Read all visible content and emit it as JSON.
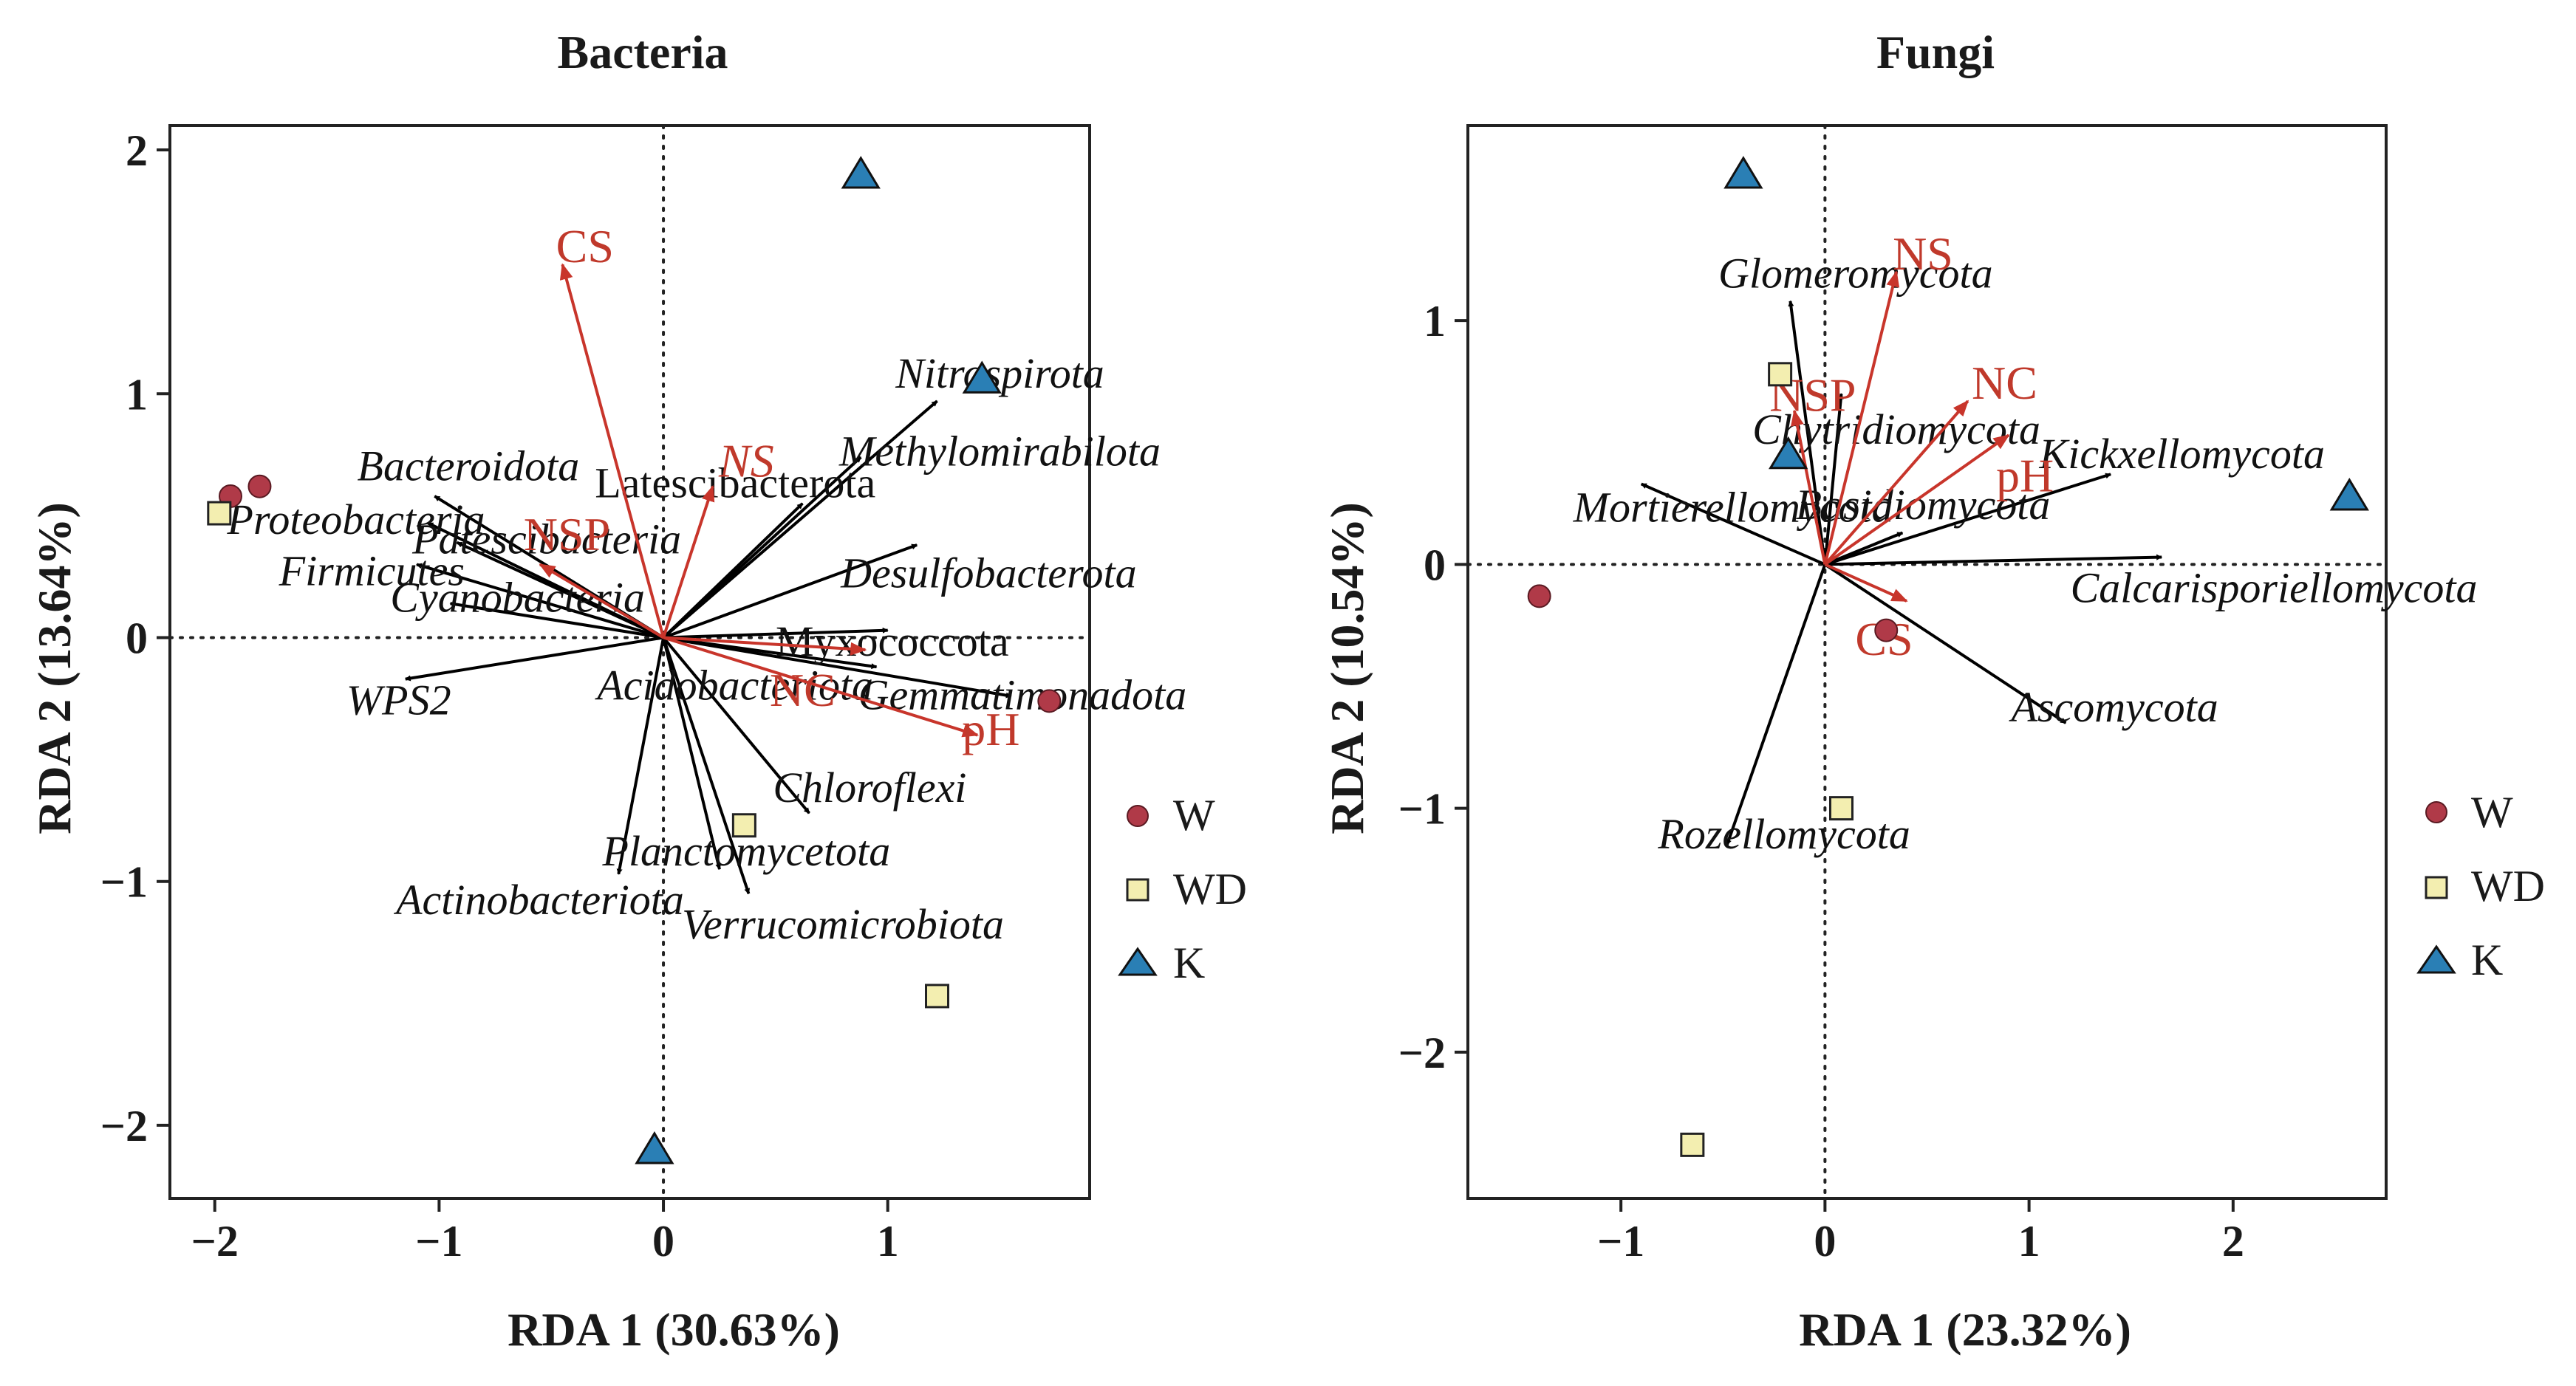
{
  "colors": {
    "taxa_arrow": "#000000",
    "env_arrow": "#c8352b",
    "W": "#b03a48",
    "WD": "#f3eeb0",
    "K": "#2a7fb5"
  },
  "legend": {
    "items": [
      {
        "key": "W",
        "label": "W",
        "shape": "circle"
      },
      {
        "key": "WD",
        "label": "WD",
        "shape": "square"
      },
      {
        "key": "K",
        "label": "K",
        "shape": "triangle"
      }
    ]
  },
  "chart_data": [
    {
      "type": "scatter",
      "title": "Bacteria",
      "xlabel": "RDA 1 (30.63%)",
      "ylabel": "RDA 2 (13.64%)",
      "xlim": [
        -2.2,
        1.9
      ],
      "ylim": [
        -2.3,
        2.1
      ],
      "xticks": [
        -2,
        -1,
        0,
        1
      ],
      "yticks": [
        -2,
        -1,
        0,
        1,
        2
      ],
      "tick_labels_x": [
        "−2",
        "−1",
        "0",
        "1"
      ],
      "tick_labels_y": [
        "−2",
        "−1",
        "0",
        "1",
        "2"
      ],
      "taxa": [
        {
          "name": "Nitrospirota",
          "x": 1.22,
          "y": 0.97,
          "lx": 1.5,
          "ly": 1.08,
          "anchor": "middle",
          "italic": true
        },
        {
          "name": "Methylomirabilota",
          "x": 0.88,
          "y": 0.74,
          "lx": 1.5,
          "ly": 0.76,
          "anchor": "middle",
          "italic": true
        },
        {
          "name": "Latescibacterota",
          "x": 0.62,
          "y": 0.55,
          "lx": 0.32,
          "ly": 0.63,
          "anchor": "middle",
          "italic": false
        },
        {
          "name": "Desulfobacterota",
          "x": 1.13,
          "y": 0.38,
          "lx": 1.45,
          "ly": 0.26,
          "anchor": "middle",
          "italic": true
        },
        {
          "name": "Myxococcota",
          "x": 1.0,
          "y": 0.03,
          "lx": 1.02,
          "ly": -0.02,
          "anchor": "middle",
          "italic": false
        },
        {
          "name": "Gemmatimonadota",
          "x": 1.55,
          "y": -0.24,
          "lx": 1.6,
          "ly": -0.24,
          "anchor": "middle",
          "italic": true
        },
        {
          "name": "Acidobacteriota",
          "x": 0.95,
          "y": -0.12,
          "lx": 0.32,
          "ly": -0.2,
          "anchor": "middle",
          "italic": true
        },
        {
          "name": "Chloroflexi",
          "x": 0.65,
          "y": -0.72,
          "lx": 0.92,
          "ly": -0.62,
          "anchor": "middle",
          "italic": true
        },
        {
          "name": "Planctomycetota",
          "x": 0.25,
          "y": -0.95,
          "lx": 0.37,
          "ly": -0.88,
          "anchor": "middle",
          "italic": true
        },
        {
          "name": "Verrucomicrobiota",
          "x": 0.38,
          "y": -1.05,
          "lx": 0.8,
          "ly": -1.18,
          "anchor": "middle",
          "italic": true
        },
        {
          "name": "Actinobacteriota",
          "x": -0.2,
          "y": -0.97,
          "lx": -0.55,
          "ly": -1.08,
          "anchor": "middle",
          "italic": true
        },
        {
          "name": "WPS2",
          "x": -1.15,
          "y": -0.17,
          "lx": -1.18,
          "ly": -0.26,
          "anchor": "middle",
          "italic": true
        },
        {
          "name": "Bacteroidota",
          "x": -1.02,
          "y": 0.58,
          "lx": -0.87,
          "ly": 0.7,
          "anchor": "middle",
          "italic": true
        },
        {
          "name": "Proteobacteria",
          "x": -1.05,
          "y": 0.47,
          "lx": -1.37,
          "ly": 0.48,
          "anchor": "middle",
          "italic": true
        },
        {
          "name": "Patescibacteria",
          "x": -0.92,
          "y": 0.39,
          "lx": -0.52,
          "ly": 0.4,
          "anchor": "middle",
          "italic": true
        },
        {
          "name": "Firmicutes",
          "x": -1.1,
          "y": 0.3,
          "lx": -1.3,
          "ly": 0.27,
          "anchor": "middle",
          "italic": true
        },
        {
          "name": "Cyanobacteria",
          "x": -0.95,
          "y": 0.14,
          "lx": -0.65,
          "ly": 0.16,
          "anchor": "middle",
          "italic": true
        }
      ],
      "env": [
        {
          "name": "CS",
          "x": -0.45,
          "y": 1.53,
          "lx": -0.35,
          "ly": 1.6,
          "anchor": "middle",
          "italic": false
        },
        {
          "name": "NS",
          "x": 0.22,
          "y": 0.62,
          "lx": 0.37,
          "ly": 0.72,
          "anchor": "middle",
          "italic": true
        },
        {
          "name": "NSP",
          "x": -0.55,
          "y": 0.3,
          "lx": -0.43,
          "ly": 0.42,
          "anchor": "middle",
          "italic": false
        },
        {
          "name": "NC",
          "x": 0.9,
          "y": -0.05,
          "lx": 0.62,
          "ly": -0.22,
          "anchor": "middle",
          "italic": false
        },
        {
          "name": "pH",
          "x": 1.4,
          "y": -0.4,
          "lx": 1.46,
          "ly": -0.38,
          "anchor": "middle",
          "italic": false
        }
      ],
      "samples": [
        {
          "group": "W",
          "x": -1.93,
          "y": 0.58
        },
        {
          "group": "W",
          "x": -1.8,
          "y": 0.62
        },
        {
          "group": "W",
          "x": 1.72,
          "y": -0.26
        },
        {
          "group": "WD",
          "x": -1.98,
          "y": 0.51
        },
        {
          "group": "WD",
          "x": 0.36,
          "y": -0.77
        },
        {
          "group": "WD",
          "x": 1.22,
          "y": -1.47
        },
        {
          "group": "K",
          "x": 0.88,
          "y": 1.9
        },
        {
          "group": "K",
          "x": 1.42,
          "y": 1.06
        },
        {
          "group": "K",
          "x": -0.04,
          "y": -2.1
        }
      ]
    },
    {
      "type": "scatter",
      "title": "Fungi",
      "xlabel": "RDA 1 (23.32%)",
      "ylabel": "RDA 2 (10.54%)",
      "xlim": [
        -1.75,
        2.75
      ],
      "ylim": [
        -2.6,
        1.8
      ],
      "xticks": [
        -1,
        0,
        1,
        2
      ],
      "yticks": [
        -2,
        -1,
        0,
        1
      ],
      "tick_labels_x": [
        "−1",
        "0",
        "1",
        "2"
      ],
      "tick_labels_y": [
        "−2",
        "−1",
        "0",
        "1"
      ],
      "taxa": [
        {
          "name": "Glomeromycota",
          "x": -0.17,
          "y": 1.08,
          "lx": 0.15,
          "ly": 1.19,
          "anchor": "middle",
          "italic": true
        },
        {
          "name": "Chytridiomycota",
          "x": 0.08,
          "y": 0.7,
          "lx": 0.35,
          "ly": 0.55,
          "anchor": "middle",
          "italic": true
        },
        {
          "name": "Kickxellomycota",
          "x": 1.4,
          "y": 0.37,
          "lx": 1.75,
          "ly": 0.45,
          "anchor": "middle",
          "italic": true
        },
        {
          "name": "Mortierellomycota",
          "x": -0.9,
          "y": 0.33,
          "lx": -0.45,
          "ly": 0.23,
          "anchor": "middle",
          "italic": true
        },
        {
          "name": "Basidiomycota",
          "x": 0.38,
          "y": 0.13,
          "lx": 0.48,
          "ly": 0.24,
          "anchor": "middle",
          "italic": true
        },
        {
          "name": "Calcarisporiellomycota",
          "x": 1.65,
          "y": 0.03,
          "lx": 2.2,
          "ly": -0.1,
          "anchor": "middle",
          "italic": true
        },
        {
          "name": "Ascomycota",
          "x": 1.18,
          "y": -0.65,
          "lx": 1.42,
          "ly": -0.59,
          "anchor": "middle",
          "italic": true
        },
        {
          "name": "Rozellomycota",
          "x": -0.48,
          "y": -1.15,
          "lx": -0.2,
          "ly": -1.11,
          "anchor": "middle",
          "italic": true
        }
      ],
      "env": [
        {
          "name": "NS",
          "x": 0.35,
          "y": 1.2,
          "lx": 0.48,
          "ly": 1.27,
          "anchor": "middle",
          "italic": false
        },
        {
          "name": "NSP",
          "x": -0.15,
          "y": 0.63,
          "lx": -0.06,
          "ly": 0.69,
          "anchor": "middle",
          "italic": false
        },
        {
          "name": "NC",
          "x": 0.7,
          "y": 0.67,
          "lx": 0.88,
          "ly": 0.74,
          "anchor": "middle",
          "italic": false
        },
        {
          "name": "pH",
          "x": 0.9,
          "y": 0.53,
          "lx": 0.98,
          "ly": 0.36,
          "anchor": "middle",
          "italic": false
        },
        {
          "name": "CS",
          "x": 0.4,
          "y": -0.15,
          "lx": 0.29,
          "ly": -0.31,
          "anchor": "middle",
          "italic": false
        }
      ],
      "samples": [
        {
          "group": "W",
          "x": -1.4,
          "y": -0.13
        },
        {
          "group": "W",
          "x": 0.3,
          "y": -0.27
        },
        {
          "group": "WD",
          "x": -0.22,
          "y": 0.78
        },
        {
          "group": "WD",
          "x": 0.08,
          "y": -1.0
        },
        {
          "group": "WD",
          "x": -0.65,
          "y": -2.38
        },
        {
          "group": "K",
          "x": -0.4,
          "y": 1.6
        },
        {
          "group": "K",
          "x": -0.18,
          "y": 0.45
        },
        {
          "group": "K",
          "x": 2.57,
          "y": 0.28
        }
      ]
    }
  ]
}
